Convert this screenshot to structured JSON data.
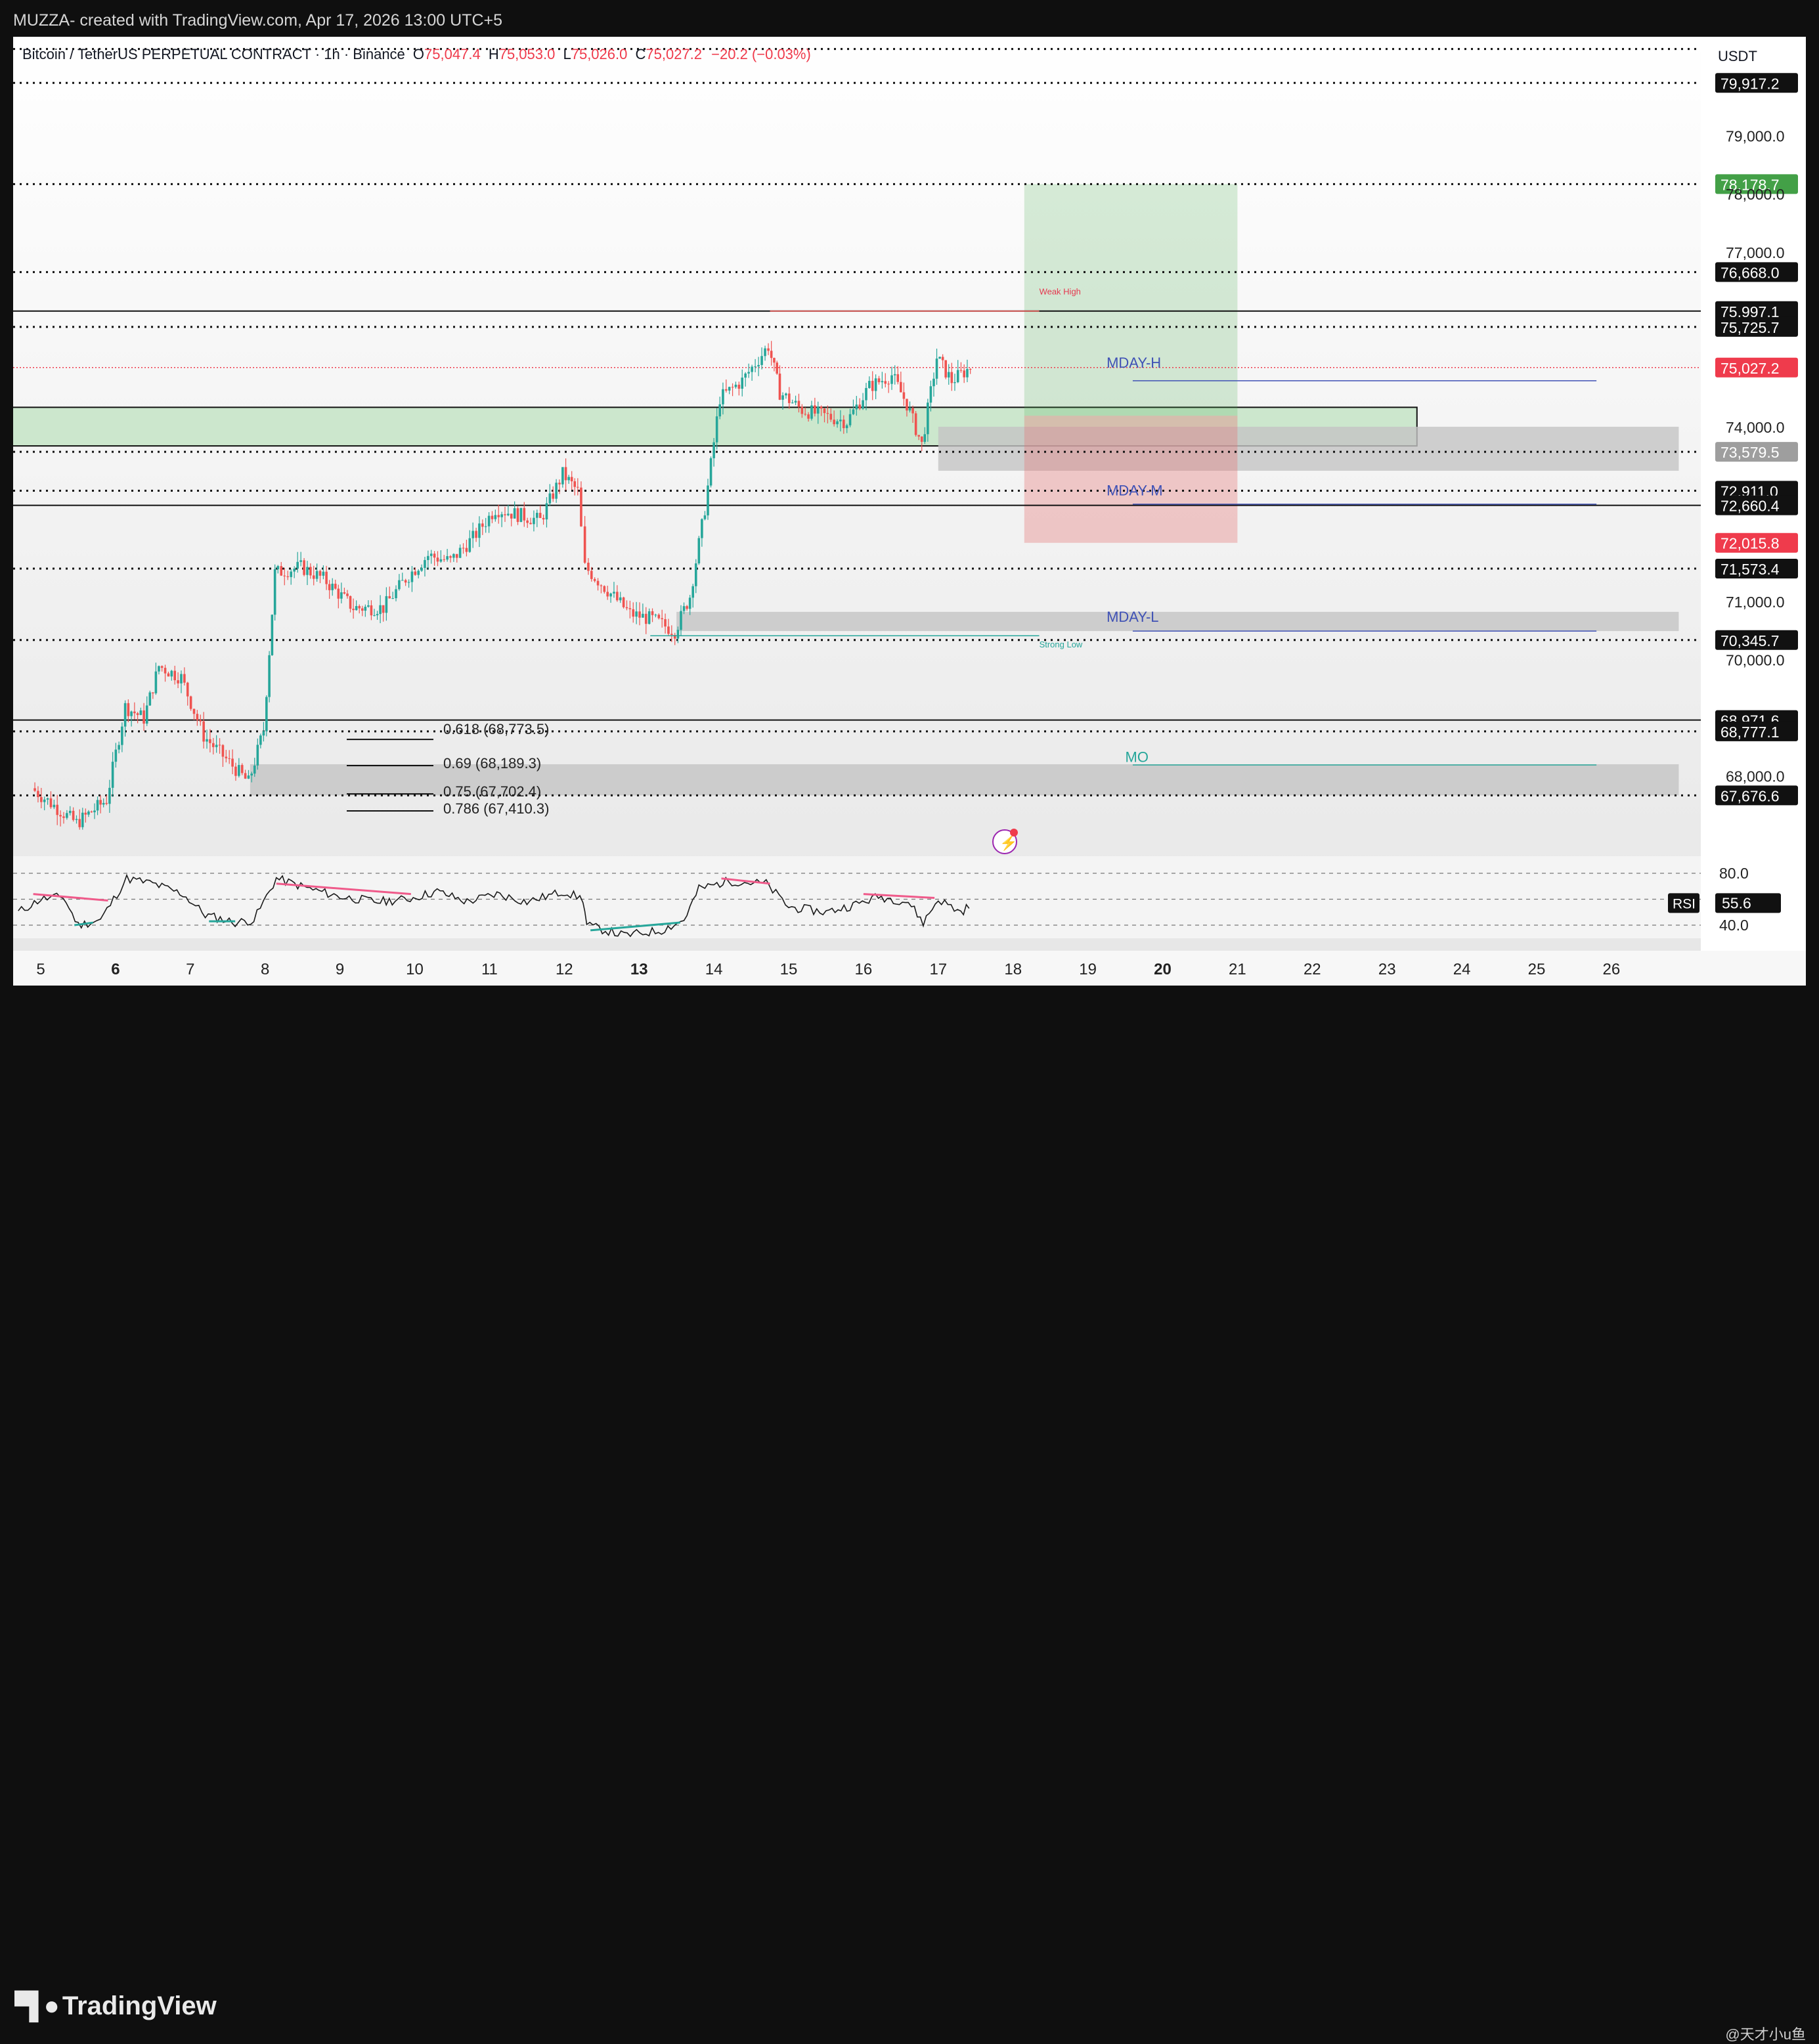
{
  "header": {
    "title": "MUZZA- created with TradingView.com, Apr 17, 2026 13:00 UTC+5"
  },
  "legend": {
    "symbol": "Bitcoin / TetherUS PERPETUAL CONTRACT · 1h · Binance",
    "open_label": "O",
    "open": "75,047.4",
    "high_label": "H",
    "high": "75,053.0",
    "low_label": "L",
    "low": "75,026.0",
    "close_label": "C",
    "close": "75,027.2",
    "change": "−20.2 (−0.03%)"
  },
  "currency": "USDT",
  "colors": {
    "up": "#26a69a",
    "down": "#ef5350",
    "zone_green": "#c8e6c9",
    "zone_gray": "#c4c4c4",
    "target_green": "#4caf50",
    "stop_red": "#e57373",
    "mday": "#3f51b5",
    "mo": "#26a69a",
    "rsi_line": "#1a1a1a",
    "divergence_bear": "#ef5a8a",
    "divergence_bull": "#26a69a",
    "price_label_red": "#ef3b4c",
    "price_label_green": "#43a047",
    "price_label_gray": "#9e9e9e"
  },
  "chart_data": {
    "type": "candlestick",
    "title": "Bitcoin / TetherUS PERPETUAL CONTRACT · 1h · Binance",
    "y_axis": {
      "ticks": [
        {
          "value": 79000,
          "label": "79,000.0"
        },
        {
          "value": 78000,
          "label": "78,000.0"
        },
        {
          "value": 77000,
          "label": "77,000.0"
        },
        {
          "value": 74000,
          "label": "74,000.0"
        },
        {
          "value": 71000,
          "label": "71,000.0"
        },
        {
          "value": 70000,
          "label": "70,000.0"
        },
        {
          "value": 68000,
          "label": "68,000.0"
        }
      ],
      "ylim": [
        67380,
        80710
      ]
    },
    "x_axis": {
      "ticks": [
        {
          "day": 5,
          "label": "5",
          "bold": false
        },
        {
          "day": 6,
          "label": "6",
          "bold": true
        },
        {
          "day": 7,
          "label": "7",
          "bold": false
        },
        {
          "day": 8,
          "label": "8",
          "bold": false
        },
        {
          "day": 9,
          "label": "9",
          "bold": false
        },
        {
          "day": 10,
          "label": "10",
          "bold": false
        },
        {
          "day": 11,
          "label": "11",
          "bold": false
        },
        {
          "day": 12,
          "label": "12",
          "bold": false
        },
        {
          "day": 13,
          "label": "13",
          "bold": true
        },
        {
          "day": 14,
          "label": "14",
          "bold": false
        },
        {
          "day": 15,
          "label": "15",
          "bold": false
        },
        {
          "day": 16,
          "label": "16",
          "bold": false
        },
        {
          "day": 17,
          "label": "17",
          "bold": false
        },
        {
          "day": 18,
          "label": "18",
          "bold": false
        },
        {
          "day": 19,
          "label": "19",
          "bold": false
        },
        {
          "day": 20,
          "label": "20",
          "bold": true
        },
        {
          "day": 21,
          "label": "21",
          "bold": false
        },
        {
          "day": 22,
          "label": "22",
          "bold": false
        },
        {
          "day": 23,
          "label": "23",
          "bold": false
        },
        {
          "day": 24,
          "label": "24",
          "bold": false
        },
        {
          "day": 25,
          "label": "25",
          "bold": false
        },
        {
          "day": 26,
          "label": "26",
          "bold": false
        }
      ]
    },
    "price_path": [
      {
        "day": 4.9,
        "price": 67800
      },
      {
        "day": 5.5,
        "price": 67200
      },
      {
        "day": 5.9,
        "price": 67600
      },
      {
        "day": 6.15,
        "price": 69200
      },
      {
        "day": 6.4,
        "price": 69000
      },
      {
        "day": 6.6,
        "price": 69900
      },
      {
        "day": 6.9,
        "price": 69700
      },
      {
        "day": 7.2,
        "price": 68700
      },
      {
        "day": 7.5,
        "price": 68300
      },
      {
        "day": 7.8,
        "price": 67900
      },
      {
        "day": 8.0,
        "price": 68800
      },
      {
        "day": 8.15,
        "price": 71500
      },
      {
        "day": 8.5,
        "price": 71600
      },
      {
        "day": 8.8,
        "price": 71400
      },
      {
        "day": 9.2,
        "price": 70900
      },
      {
        "day": 9.6,
        "price": 70900
      },
      {
        "day": 9.9,
        "price": 71400
      },
      {
        "day": 10.2,
        "price": 71800
      },
      {
        "day": 10.5,
        "price": 71700
      },
      {
        "day": 10.8,
        "price": 72100
      },
      {
        "day": 11.1,
        "price": 72600
      },
      {
        "day": 11.4,
        "price": 72500
      },
      {
        "day": 11.7,
        "price": 72400
      },
      {
        "day": 12.0,
        "price": 73200
      },
      {
        "day": 12.2,
        "price": 72900
      },
      {
        "day": 12.3,
        "price": 71600
      },
      {
        "day": 12.6,
        "price": 71200
      },
      {
        "day": 12.9,
        "price": 70800
      },
      {
        "day": 13.2,
        "price": 70700
      },
      {
        "day": 13.5,
        "price": 70500
      },
      {
        "day": 13.7,
        "price": 71100
      },
      {
        "day": 13.9,
        "price": 72600
      },
      {
        "day": 14.1,
        "price": 74500
      },
      {
        "day": 14.4,
        "price": 74800
      },
      {
        "day": 14.75,
        "price": 75400
      },
      {
        "day": 14.9,
        "price": 74600
      },
      {
        "day": 15.2,
        "price": 74300
      },
      {
        "day": 15.5,
        "price": 74200
      },
      {
        "day": 15.8,
        "price": 74100
      },
      {
        "day": 16.1,
        "price": 74700
      },
      {
        "day": 16.4,
        "price": 74900
      },
      {
        "day": 16.6,
        "price": 74400
      },
      {
        "day": 16.8,
        "price": 73700
      },
      {
        "day": 17.0,
        "price": 75200
      },
      {
        "day": 17.2,
        "price": 74800
      },
      {
        "day": 17.45,
        "price": 75027
      }
    ],
    "horizontal_levels": [
      {
        "price": 80500,
        "style": "dotted",
        "label": "",
        "label_style": "none"
      },
      {
        "price": 79917.2,
        "style": "dotted",
        "label": "79,917.2",
        "label_style": "black"
      },
      {
        "price": 78178.7,
        "style": "dotted",
        "label": "78,178.7",
        "label_style": "green"
      },
      {
        "price": 76668.0,
        "style": "dotted",
        "label": "76,668.0",
        "label_style": "black"
      },
      {
        "price": 75997.1,
        "style": "solid",
        "label": "75,997.1",
        "label_style": "black"
      },
      {
        "price": 75725.7,
        "style": "dotted",
        "label": "75,725.7",
        "label_style": "black"
      },
      {
        "price": 75027.2,
        "style": "red-dotted",
        "label": "75,027.2",
        "label_style": "red"
      },
      {
        "price": 73579.5,
        "style": "dotted",
        "label": "73,579.5",
        "label_style": "gray"
      },
      {
        "price": 72911.0,
        "style": "dotted",
        "label": "72,911.0",
        "label_style": "black"
      },
      {
        "price": 72660.4,
        "style": "solid",
        "label": "72,660.4",
        "label_style": "black"
      },
      {
        "price": 72015.8,
        "style": "none",
        "label": "72,015.8",
        "label_style": "red"
      },
      {
        "price": 71573.4,
        "style": "dotted",
        "label": "71,573.4",
        "label_style": "black"
      },
      {
        "price": 70345.7,
        "style": "dotted",
        "label": "70,345.7",
        "label_style": "black"
      },
      {
        "price": 68971.6,
        "style": "solid",
        "label": "68,971.6",
        "label_style": "black"
      },
      {
        "price": 68777.1,
        "style": "dotted",
        "label": "68,777.1",
        "label_style": "black"
      },
      {
        "price": 67676.6,
        "style": "dotted",
        "label": "67,676.6",
        "label_style": "black"
      }
    ],
    "zones": [
      {
        "kind": "green-box",
        "start_day": 4.3,
        "end_day": 23.4,
        "top": 74344,
        "bottom": 73681
      },
      {
        "kind": "gray-box",
        "start_day": 17.0,
        "end_day": 26.9,
        "top": 74010,
        "bottom": 73254
      },
      {
        "kind": "gray-box",
        "start_day": 13.5,
        "end_day": 26.9,
        "top": 70830,
        "bottom": 70500
      },
      {
        "kind": "gray-box",
        "start_day": 7.8,
        "end_day": 26.9,
        "top": 68212,
        "bottom": 67676
      },
      {
        "kind": "target",
        "start_day": 18.15,
        "end_day": 21.0,
        "top": 78178.7,
        "bottom": 74200
      },
      {
        "kind": "stop",
        "start_day": 18.15,
        "end_day": 21.0,
        "top": 74200,
        "bottom": 72015.8
      }
    ],
    "annotations": [
      {
        "text": "Weak High",
        "day": 18.35,
        "price": 76280,
        "color": "#e53950",
        "size": 13
      },
      {
        "text": "Strong Low",
        "day": 18.35,
        "price": 70220,
        "color": "#26a69a",
        "size": 13
      },
      {
        "text": "MDAY-H",
        "day": 19.25,
        "price": 75027,
        "color": "#3f51b5",
        "size": 22,
        "line_start": 19.6,
        "line_end": 25.8,
        "line_price": 74800
      },
      {
        "text": "MDAY-M",
        "day": 19.25,
        "price": 72830,
        "color": "#3f51b5",
        "size": 22,
        "line_start": 19.6,
        "line_end": 25.8,
        "line_price": 72680
      },
      {
        "text": "MDAY-L",
        "day": 19.25,
        "price": 70660,
        "color": "#3f51b5",
        "size": 22,
        "line_start": 19.6,
        "line_end": 25.8,
        "line_price": 70500
      },
      {
        "text": "MO",
        "day": 19.5,
        "price": 68250,
        "color": "#26a69a",
        "size": 22,
        "line_start": 19.6,
        "line_end": 25.8,
        "line_price": 68200
      }
    ],
    "fib_levels": [
      {
        "label": "0.618 (68,773.5)",
        "price": 68773.5
      },
      {
        "label": "0.69 (68,189.3)",
        "price": 68189.3
      },
      {
        "label": "0.75 (67,702.4)",
        "price": 67702.4
      },
      {
        "label": "0.786 (67,410.3)",
        "price": 67410.3
      }
    ],
    "rsi": {
      "label": "RSI",
      "value": "55.6",
      "upper": 80.0,
      "upper_label": "80.0",
      "lower": 40.0,
      "lower_label": "40.0",
      "points": [
        {
          "day": 4.7,
          "v": 50
        },
        {
          "day": 5.0,
          "v": 60
        },
        {
          "day": 5.3,
          "v": 62
        },
        {
          "day": 5.5,
          "v": 40
        },
        {
          "day": 5.8,
          "v": 44
        },
        {
          "day": 6.15,
          "v": 76
        },
        {
          "day": 6.5,
          "v": 72
        },
        {
          "day": 6.9,
          "v": 64
        },
        {
          "day": 7.2,
          "v": 48
        },
        {
          "day": 7.6,
          "v": 42
        },
        {
          "day": 7.85,
          "v": 44
        },
        {
          "day": 8.15,
          "v": 76
        },
        {
          "day": 8.6,
          "v": 68
        },
        {
          "day": 9.0,
          "v": 62
        },
        {
          "day": 9.5,
          "v": 58
        },
        {
          "day": 9.9,
          "v": 60
        },
        {
          "day": 10.3,
          "v": 66
        },
        {
          "day": 10.7,
          "v": 58
        },
        {
          "day": 11.1,
          "v": 64
        },
        {
          "day": 11.5,
          "v": 58
        },
        {
          "day": 12.0,
          "v": 66
        },
        {
          "day": 12.25,
          "v": 60
        },
        {
          "day": 12.3,
          "v": 40
        },
        {
          "day": 12.8,
          "v": 32
        },
        {
          "day": 13.3,
          "v": 36
        },
        {
          "day": 13.6,
          "v": 44
        },
        {
          "day": 13.8,
          "v": 68
        },
        {
          "day": 14.2,
          "v": 74
        },
        {
          "day": 14.7,
          "v": 72
        },
        {
          "day": 15.0,
          "v": 54
        },
        {
          "day": 15.5,
          "v": 50
        },
        {
          "day": 15.9,
          "v": 56
        },
        {
          "day": 16.2,
          "v": 62
        },
        {
          "day": 16.6,
          "v": 58
        },
        {
          "day": 16.8,
          "v": 42
        },
        {
          "day": 17.0,
          "v": 60
        },
        {
          "day": 17.3,
          "v": 50
        },
        {
          "day": 17.45,
          "v": 56
        }
      ],
      "divergences": [
        {
          "kind": "bear",
          "from": {
            "day": 4.9,
            "v": 64
          },
          "to": {
            "day": 5.9,
            "v": 59
          }
        },
        {
          "kind": "bull",
          "from": {
            "day": 5.45,
            "v": 40
          },
          "to": {
            "day": 5.7,
            "v": 42
          }
        },
        {
          "kind": "bull",
          "from": {
            "day": 7.25,
            "v": 43
          },
          "to": {
            "day": 7.6,
            "v": 43
          }
        },
        {
          "kind": "bear",
          "from": {
            "day": 8.15,
            "v": 72
          },
          "to": {
            "day": 9.95,
            "v": 64
          }
        },
        {
          "kind": "bull",
          "from": {
            "day": 12.35,
            "v": 36
          },
          "to": {
            "day": 13.55,
            "v": 42
          }
        },
        {
          "kind": "bear",
          "from": {
            "day": 14.1,
            "v": 76
          },
          "to": {
            "day": 14.75,
            "v": 72
          }
        },
        {
          "kind": "bear",
          "from": {
            "day": 16.0,
            "v": 64
          },
          "to": {
            "day": 16.95,
            "v": 61
          }
        }
      ]
    }
  },
  "footer": {
    "brand": "TradingView",
    "watermark": "@天才小u鱼"
  }
}
